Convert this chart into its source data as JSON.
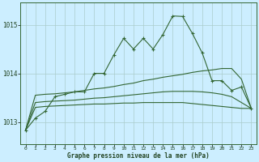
{
  "background_color": "#cceeff",
  "grid_color": "#aacccc",
  "line_color": "#336633",
  "text_color": "#224422",
  "xlabel": "Graphe pression niveau de la mer (hPa)",
  "xlim": [
    -0.5,
    23.5
  ],
  "ylim": [
    1012.55,
    1015.45
  ],
  "yticks": [
    1013,
    1014,
    1015
  ],
  "xticks": [
    0,
    1,
    2,
    3,
    4,
    5,
    6,
    7,
    8,
    9,
    10,
    11,
    12,
    13,
    14,
    15,
    16,
    17,
    18,
    19,
    20,
    21,
    22,
    23
  ],
  "series1": [
    1012.83,
    1013.08,
    1013.22,
    1013.52,
    1013.57,
    1013.62,
    1013.62,
    1014.0,
    1014.0,
    1014.38,
    1014.72,
    1014.5,
    1014.72,
    1014.5,
    1014.8,
    1015.18,
    1015.17,
    1014.82,
    1014.42,
    1013.85,
    1013.85,
    1013.65,
    1013.72,
    1013.28
  ],
  "series2_straight": [
    1012.83,
    1013.55,
    1013.57,
    1013.58,
    1013.6,
    1013.62,
    1013.65,
    1013.68,
    1013.7,
    1013.73,
    1013.77,
    1013.8,
    1013.85,
    1013.88,
    1013.92,
    1013.95,
    1013.98,
    1014.02,
    1014.05,
    1014.07,
    1014.1,
    1014.1,
    1013.88,
    1013.28
  ],
  "series3_straight": [
    1012.83,
    1013.4,
    1013.42,
    1013.43,
    1013.44,
    1013.45,
    1013.47,
    1013.49,
    1013.5,
    1013.52,
    1013.54,
    1013.56,
    1013.58,
    1013.6,
    1013.62,
    1013.63,
    1013.63,
    1013.63,
    1013.62,
    1013.6,
    1013.57,
    1013.52,
    1013.4,
    1013.28
  ],
  "series4_straight": [
    1012.83,
    1013.3,
    1013.32,
    1013.33,
    1013.34,
    1013.35,
    1013.36,
    1013.37,
    1013.37,
    1013.38,
    1013.39,
    1013.39,
    1013.4,
    1013.4,
    1013.4,
    1013.4,
    1013.4,
    1013.38,
    1013.36,
    1013.34,
    1013.32,
    1013.3,
    1013.28,
    1013.28
  ]
}
